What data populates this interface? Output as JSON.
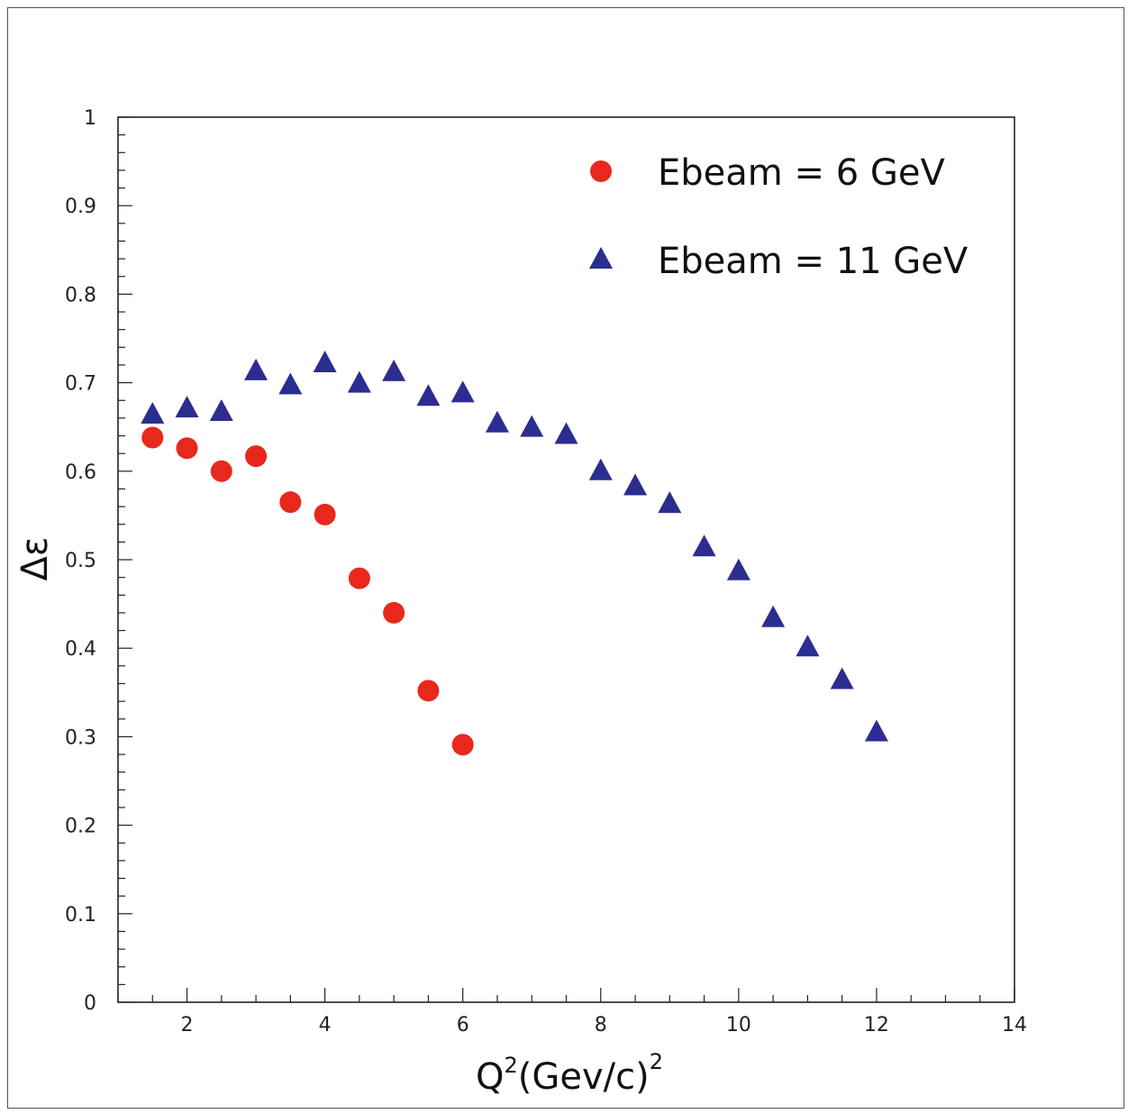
{
  "chart_data": {
    "type": "scatter",
    "title": "",
    "xlabel": "Q",
    "xlabel_sup": "2",
    "xlabel_rest": "(Gev/c)",
    "xlabel_sup2": "2",
    "ylabel": "Δε",
    "xlim": [
      1,
      14
    ],
    "ylim": [
      0,
      1
    ],
    "xticks": [
      "2",
      "4",
      "6",
      "8",
      "10",
      "12",
      "14"
    ],
    "yticks": [
      "0",
      "0.1",
      "0.2",
      "0.3",
      "0.4",
      "0.5",
      "0.6",
      "0.7",
      "0.8",
      "0.9",
      "1"
    ],
    "grid": false,
    "legend_position": "top-right",
    "series": [
      {
        "name": "Ebeam = 6 GeV",
        "marker": "circle",
        "color": "#e8281c",
        "x": [
          1.5,
          2.0,
          2.5,
          3.0,
          3.5,
          4.0,
          4.5,
          5.0,
          5.5,
          6.0
        ],
        "y": [
          0.638,
          0.626,
          0.6,
          0.617,
          0.565,
          0.551,
          0.479,
          0.44,
          0.352,
          0.291
        ]
      },
      {
        "name": "Ebeam = 11 GeV",
        "marker": "triangle",
        "color": "#2b2d8f",
        "x": [
          1.5,
          2.0,
          2.5,
          3.0,
          3.5,
          4.0,
          4.5,
          5.0,
          5.5,
          6.0,
          6.5,
          7.0,
          7.5,
          8.0,
          8.5,
          9.0,
          9.5,
          10.0,
          10.5,
          11.0,
          11.5,
          12.0
        ],
        "y": [
          0.664,
          0.671,
          0.667,
          0.713,
          0.697,
          0.722,
          0.699,
          0.712,
          0.684,
          0.688,
          0.654,
          0.649,
          0.641,
          0.6,
          0.583,
          0.563,
          0.514,
          0.487,
          0.434,
          0.401,
          0.364,
          0.305
        ]
      }
    ]
  }
}
